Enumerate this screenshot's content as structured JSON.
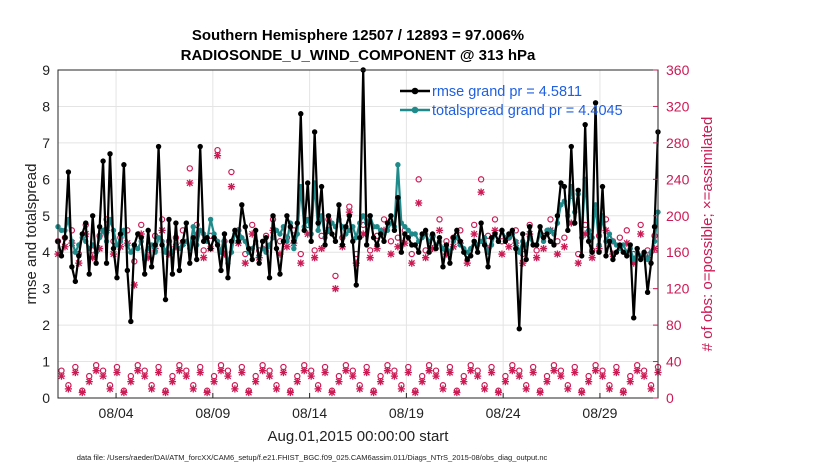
{
  "chart_data": {
    "type": "line",
    "title": "Southern Hemisphere 12507 / 12893 = 97.006%",
    "subtitle": "RADIOSONDE_U_WIND_COMPONENT @ 313 hPa",
    "xlabel": "Aug.01,2015 00:00:00 start",
    "ylabel": "rmse and totalspread",
    "ylabel_right": "# of obs: o=possible; ×=assimilated",
    "xlim": [
      1,
      32
    ],
    "ylim": [
      0,
      9
    ],
    "ylim_right": [
      0,
      360
    ],
    "grid": true,
    "legend_position": "top-right",
    "x_tick_values": [
      4,
      9,
      14,
      19,
      24,
      29
    ],
    "x_tick_labels": [
      "08/04",
      "08/09",
      "08/14",
      "08/19",
      "08/24",
      "08/29"
    ],
    "y_ticks": [
      0,
      1,
      2,
      3,
      4,
      5,
      6,
      7,
      8,
      9
    ],
    "y_ticks_right": [
      0,
      40,
      80,
      120,
      160,
      200,
      240,
      280,
      320,
      360
    ],
    "footnote": "data file: /Users/raeder/DAI/ATM_forcXX/CAM6_setup/f.e21.FHIST_BGC.f09_025.CAM6assim.011/Diags_NTrS_2015-08/obs_diag_output.nc",
    "series": [
      {
        "name": "rmse grand pr = 4.5811",
        "color": "#000000",
        "values": [
          4.3,
          3.9,
          4.4,
          6.2,
          3.6,
          3.2,
          3.9,
          4.5,
          4.8,
          3.4,
          5.0,
          3.7,
          4.7,
          6.5,
          3.7,
          6.7,
          4.1,
          3.3,
          4.5,
          6.4,
          3.5,
          2.1,
          4.2,
          4.5,
          4.4,
          3.4,
          4.6,
          3.6,
          4.2,
          6.9,
          4.2,
          2.7,
          4.9,
          3.4,
          4.8,
          3.5,
          4.3,
          4.8,
          3.7,
          4.4,
          3.8,
          6.9,
          4.3,
          4.4,
          4.1,
          4.4,
          4.2,
          3.5,
          4.5,
          3.3,
          4.3,
          4.6,
          4.3,
          5.3,
          4.7,
          4.1,
          3.8,
          4.6,
          3.7,
          4.3,
          4.4,
          3.3,
          5.0,
          4.1,
          3.4,
          4.3,
          5.0,
          4.7,
          4.3,
          4.8,
          7.8,
          4.6,
          5.9,
          4.3,
          7.3,
          4.8,
          5.8,
          4.2,
          5.0,
          4.5,
          4.3,
          5.3,
          4.2,
          4.7,
          5.0,
          4.3,
          3.1,
          4.4,
          9.0,
          4.2,
          5.0,
          4.4,
          4.2,
          4.5,
          4.3,
          4.8,
          5.0,
          4.6,
          5.5,
          4.0,
          4.5,
          4.4,
          4.2,
          4.2,
          4.0,
          4.5,
          4.6,
          4.0,
          4.5,
          4.1,
          4.4,
          3.6,
          4.2,
          3.7,
          4.4,
          4.6,
          4.3,
          4.0,
          3.8,
          3.9,
          4.3,
          4.0,
          4.8,
          4.2,
          3.6,
          4.4,
          4.5,
          4.3,
          4.6,
          4.3,
          4.5,
          4.6,
          4.1,
          1.9,
          4.5,
          3.8,
          4.7,
          4.2,
          4.2,
          4.7,
          4.4,
          4.5,
          4.3,
          4.2,
          5.0,
          5.9,
          5.8,
          4.6,
          6.9,
          4.8,
          5.7,
          3.9,
          7.5,
          4.3,
          4.0,
          8.1,
          4.0,
          5.8,
          3.9,
          4.3,
          3.8,
          4.0,
          4.2,
          4.0,
          3.9,
          4.2,
          2.2,
          4.1,
          3.8,
          4.0,
          2.9,
          3.7,
          4.7,
          7.3
        ],
        "grand": 4.5811
      },
      {
        "name": "totalspread grand pr = 4.4045",
        "color": "#1f8a8a",
        "values": [
          4.7,
          4.6,
          4.6,
          4.9,
          4.3,
          4.0,
          4.2,
          4.4,
          4.3,
          4.1,
          4.2,
          4.0,
          4.4,
          4.6,
          4.3,
          4.9,
          4.6,
          4.2,
          4.3,
          4.6,
          4.2,
          4.0,
          4.2,
          4.1,
          4.3,
          3.8,
          4.1,
          4.2,
          4.0,
          4.4,
          4.3,
          4.0,
          4.3,
          4.0,
          4.2,
          4.1,
          4.2,
          4.3,
          4.1,
          4.7,
          4.2,
          4.6,
          4.5,
          4.3,
          4.9,
          4.5,
          4.3,
          4.0,
          4.5,
          3.7,
          4.0,
          4.5,
          4.6,
          4.4,
          4.3,
          4.0,
          4.1,
          4.3,
          3.9,
          4.1,
          4.0,
          4.2,
          4.4,
          4.6,
          4.5,
          4.7,
          4.3,
          4.8,
          4.1,
          4.5,
          5.8,
          4.7,
          4.9,
          4.5,
          5.9,
          4.6,
          5.0,
          4.4,
          4.6,
          4.8,
          4.7,
          4.9,
          4.7,
          4.5,
          4.6,
          4.7,
          4.4,
          4.8,
          5.0,
          4.8,
          5.0,
          4.7,
          4.7,
          4.6,
          4.5,
          4.6,
          4.8,
          4.7,
          6.4,
          4.8,
          4.7,
          4.6,
          4.5,
          4.5,
          4.3,
          4.4,
          4.5,
          4.3,
          4.4,
          4.2,
          4.3,
          4.1,
          4.2,
          4.0,
          4.3,
          4.4,
          4.2,
          4.1,
          4.0,
          4.1,
          4.3,
          4.2,
          4.3,
          4.4,
          4.0,
          4.2,
          4.5,
          4.3,
          4.6,
          4.4,
          4.4,
          4.5,
          4.3,
          4.0,
          4.3,
          4.2,
          4.4,
          4.2,
          4.2,
          4.5,
          4.3,
          4.6,
          4.6,
          4.5,
          4.8,
          5.3,
          5.4,
          5.0,
          5.8,
          5.1,
          5.6,
          4.4,
          6.0,
          4.6,
          4.4,
          5.3,
          4.2,
          5.0,
          4.3,
          4.5,
          4.3,
          4.2,
          4.1,
          4.2,
          4.0,
          4.1,
          3.8,
          4.0,
          3.9,
          3.9,
          3.8,
          4.0,
          4.3,
          5.1
        ],
        "grand": 4.4045
      }
    ],
    "obs_pattern_high": [
      {
        "p": 172,
        "a": 158
      },
      {
        "p": 176,
        "a": 166
      },
      {
        "p": 184,
        "a": 170
      },
      {
        "p": 158,
        "a": 148
      },
      {
        "p": 190,
        "a": 180
      },
      {
        "p": 162,
        "a": 154
      },
      {
        "p": 178,
        "a": 164
      },
      {
        "p": 196,
        "a": 184
      }
    ],
    "obs_pattern_low": [
      {
        "p": 30,
        "a": 24
      },
      {
        "p": 14,
        "a": 10
      },
      {
        "p": 34,
        "a": 28
      },
      {
        "p": 8,
        "a": 6
      },
      {
        "p": 24,
        "a": 18
      },
      {
        "p": 36,
        "a": 30
      }
    ],
    "obs_highlights": [
      {
        "i": 22,
        "p": 150,
        "a": 124
      },
      {
        "i": 38,
        "p": 252,
        "a": 236
      },
      {
        "i": 46,
        "p": 272,
        "a": 266
      },
      {
        "i": 50,
        "p": 248,
        "a": 232
      },
      {
        "i": 80,
        "p": 134,
        "a": 120
      },
      {
        "i": 84,
        "p": 210,
        "a": 204
      },
      {
        "i": 104,
        "p": 240,
        "a": 214
      },
      {
        "i": 122,
        "p": 240,
        "a": 226
      },
      {
        "i": 148,
        "p": 222,
        "a": 192
      }
    ]
  }
}
